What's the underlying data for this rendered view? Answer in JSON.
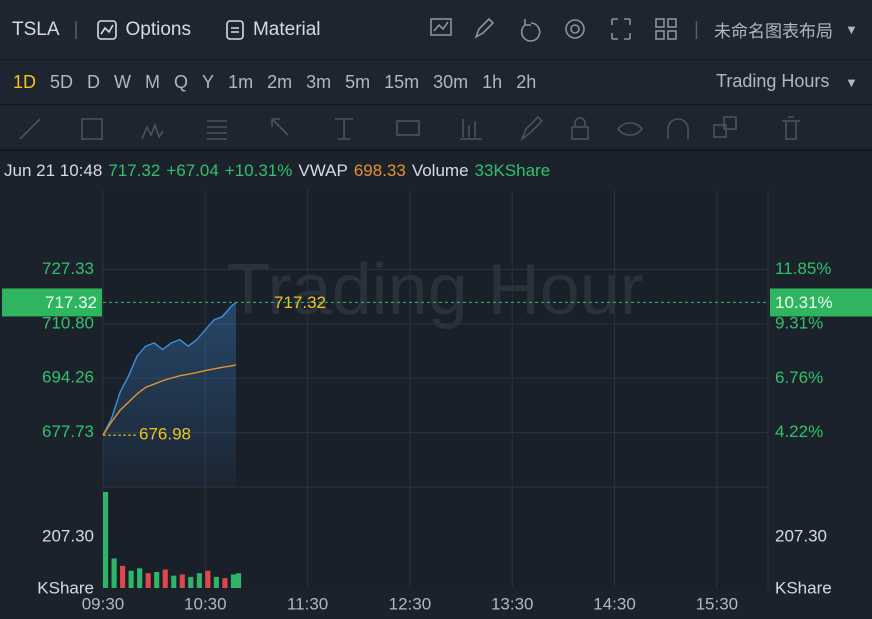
{
  "header": {
    "symbol": "TSLA",
    "options": "Options",
    "material": "Material",
    "layout_name": "未命名图表布局",
    "trading_hours": "Trading Hours",
    "timeframes": [
      "1D",
      "5D",
      "D",
      "W",
      "M",
      "Q",
      "Y",
      "1m",
      "2m",
      "3m",
      "5m",
      "15m",
      "30m",
      "1h",
      "2h"
    ]
  },
  "status": {
    "datetime": "Jun 21 10:48",
    "price": "717.32",
    "change": "+67.04",
    "change_pct": "+10.31%",
    "vwap_label": "VWAP",
    "vwap": "698.33",
    "volume_label": "Volume",
    "volume": "33KShare"
  },
  "chart_data": [
    {
      "type": "line",
      "watermark": "Trading Hour",
      "x": [
        "09:30",
        "09:35",
        "09:40",
        "09:45",
        "09:50",
        "09:55",
        "10:00",
        "10:05",
        "10:10",
        "10:15",
        "10:20",
        "10:25",
        "10:30",
        "10:35",
        "10:40",
        "10:45",
        "10:48"
      ],
      "xlim": [
        "09:30",
        "16:00"
      ],
      "xticks": [
        "09:30",
        "10:30",
        "11:30",
        "12:30",
        "13:30",
        "14:30",
        "15:30"
      ],
      "ylim": [
        661.2,
        751.5
      ],
      "yticks": [
        677.73,
        694.26,
        {
          "value": 710.8,
          "label": "710.80"
        },
        727.33
      ],
      "y2lim": [
        1.68,
        15.57
      ],
      "y2ticks": [
        {
          "value": 4.22,
          "label": "4.22%"
        },
        {
          "value": 6.76,
          "label": "6.76%"
        },
        {
          "value": 9.31,
          "label": "9.31%"
        },
        {
          "value": 11.85,
          "label": "11.85%"
        }
      ],
      "grid": true,
      "series": [
        {
          "color": "#3d8fe0",
          "values": [
            676.98,
            682,
            690,
            695,
            701,
            704,
            705,
            703,
            705,
            706,
            704,
            706,
            709,
            712,
            713,
            716,
            717.32
          ]
        },
        {
          "color": "#e8922c",
          "values": [
            676.98,
            681,
            684.5,
            687,
            689.5,
            691.5,
            692.5,
            693.5,
            694.3,
            695,
            695.5,
            696,
            696.6,
            697.1,
            697.6,
            698,
            698.33
          ]
        }
      ],
      "last_price": 717.32,
      "last_change": {
        "value": 10.31,
        "label": "10.31%"
      },
      "low": 676.98
    },
    {
      "type": "bar",
      "unit": "KShare",
      "x": [
        "09:30",
        "09:35",
        "09:40",
        "09:45",
        "09:50",
        "09:55",
        "10:00",
        "10:05",
        "10:10",
        "10:15",
        "10:20",
        "10:25",
        "10:30",
        "10:35",
        "10:40",
        "10:45",
        "10:48"
      ],
      "ylim": [
        0,
        398
      ],
      "yticks": [
        {
          "value": 207.3,
          "label": "207.30"
        }
      ],
      "values": [
        390,
        120,
        90,
        70,
        80,
        60,
        65,
        75,
        50,
        55,
        45,
        60,
        70,
        45,
        40,
        55,
        60
      ],
      "colors": [
        "#2fb56a",
        "#2fb56a",
        "#e0464e",
        "#2fb56a",
        "#2fb56a",
        "#e0464e",
        "#2fb56a",
        "#e0464e",
        "#2fb56a",
        "#e0464e",
        "#2fb56a",
        "#2fb56a",
        "#e0464e",
        "#2fb56a",
        "#e0464e",
        "#2fb56a",
        "#2fb56a"
      ]
    }
  ]
}
